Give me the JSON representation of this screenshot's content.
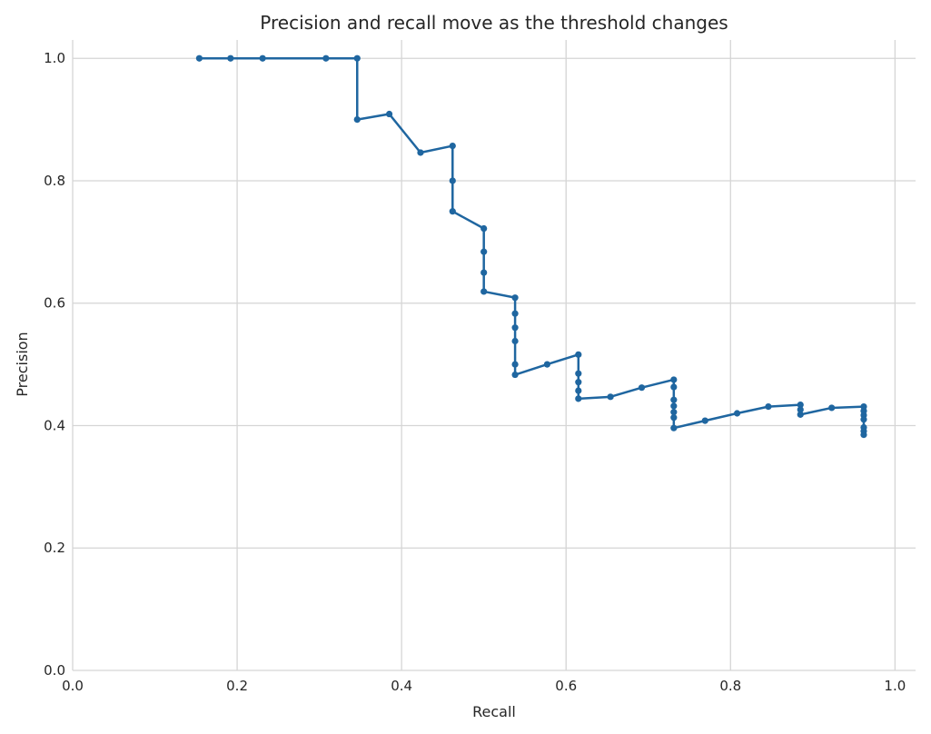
{
  "chart_data": {
    "type": "line",
    "title": "Precision and recall move as the threshold changes",
    "xlabel": "Recall",
    "ylabel": "Precision",
    "xlim": [
      0,
      1.025
    ],
    "ylim": [
      0,
      1.03
    ],
    "xticks": [
      0.0,
      0.2,
      0.4,
      0.6,
      0.8,
      1.0
    ],
    "xtick_labels": [
      "0.0",
      "0.2",
      "0.4",
      "0.6",
      "0.8",
      "1.0"
    ],
    "yticks": [
      0.0,
      0.2,
      0.4,
      0.6,
      0.8,
      1.0
    ],
    "ytick_labels": [
      "0.0",
      "0.2",
      "0.4",
      "0.6",
      "0.8",
      "1.0"
    ],
    "grid": true,
    "colors": {
      "series": "#1f66a0",
      "grid": "#d5d5d5",
      "text": "#262626"
    },
    "series": [
      {
        "name": "",
        "marker": "circle",
        "points": [
          [
            0.154,
            1.0
          ],
          [
            0.192,
            1.0
          ],
          [
            0.231,
            1.0
          ],
          [
            0.308,
            1.0
          ],
          [
            0.346,
            1.0
          ],
          [
            0.346,
            0.9
          ],
          [
            0.385,
            0.909
          ],
          [
            0.423,
            0.846
          ],
          [
            0.462,
            0.857
          ],
          [
            0.462,
            0.8
          ],
          [
            0.462,
            0.75
          ],
          [
            0.5,
            0.722
          ],
          [
            0.5,
            0.684
          ],
          [
            0.5,
            0.65
          ],
          [
            0.5,
            0.619
          ],
          [
            0.538,
            0.609
          ],
          [
            0.538,
            0.583
          ],
          [
            0.538,
            0.56
          ],
          [
            0.538,
            0.538
          ],
          [
            0.538,
            0.5
          ],
          [
            0.538,
            0.483
          ],
          [
            0.577,
            0.5
          ],
          [
            0.615,
            0.516
          ],
          [
            0.615,
            0.485
          ],
          [
            0.615,
            0.471
          ],
          [
            0.615,
            0.457
          ],
          [
            0.615,
            0.444
          ],
          [
            0.654,
            0.447
          ],
          [
            0.692,
            0.462
          ],
          [
            0.731,
            0.475
          ],
          [
            0.731,
            0.463
          ],
          [
            0.731,
            0.442
          ],
          [
            0.731,
            0.432
          ],
          [
            0.731,
            0.422
          ],
          [
            0.731,
            0.413
          ],
          [
            0.731,
            0.396
          ],
          [
            0.769,
            0.408
          ],
          [
            0.808,
            0.42
          ],
          [
            0.846,
            0.431
          ],
          [
            0.885,
            0.434
          ],
          [
            0.885,
            0.426
          ],
          [
            0.885,
            0.418
          ],
          [
            0.923,
            0.429
          ],
          [
            0.962,
            0.431
          ],
          [
            0.962,
            0.424
          ],
          [
            0.962,
            0.417
          ],
          [
            0.962,
            0.41
          ],
          [
            0.962,
            0.397
          ],
          [
            0.962,
            0.391
          ],
          [
            0.962,
            0.385
          ]
        ]
      }
    ]
  }
}
